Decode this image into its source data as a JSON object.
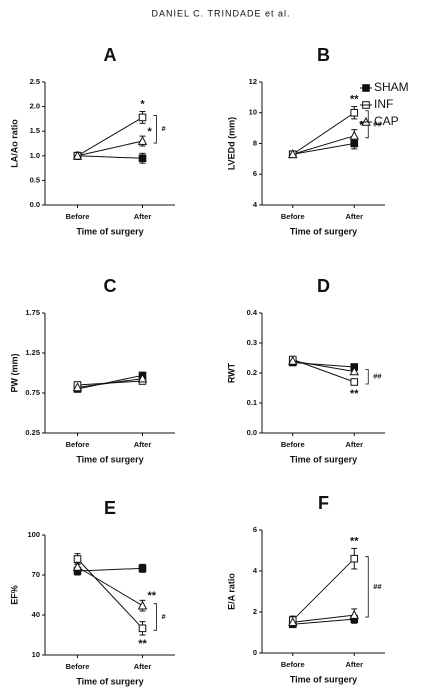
{
  "header": "DANIEL C. TRINDADE et al.",
  "chart_data": [
    {
      "type": "line",
      "title": "A",
      "ylabel": "LA/Ao ratio",
      "xlabel": "Time of surgery",
      "categories": [
        "Before",
        "After"
      ],
      "ylim": [
        0,
        2.5
      ],
      "yticks": [
        {
          "value": 0,
          "label": "0.0"
        },
        0.5,
        {
          "value": 1,
          "label": "1.0"
        },
        1.5,
        {
          "value": 2,
          "label": "2.0"
        },
        2.5
      ],
      "series": [
        {
          "color": "#111111",
          "marker": "square-filled",
          "values": [
            1.0,
            0.95
          ],
          "errors": [
            0.07,
            0.1
          ]
        },
        {
          "color": "#111111",
          "marker": "square-open",
          "values": [
            1.0,
            1.78
          ],
          "errors": [
            0.07,
            0.12
          ],
          "significance": [
            null,
            "*"
          ]
        },
        {
          "color": "#111111",
          "marker": "triangle-open",
          "values": [
            1.0,
            1.3
          ],
          "errors": [
            0.07,
            0.1
          ],
          "significance": [
            null,
            "*"
          ]
        }
      ],
      "bracket_label": "#"
    },
    {
      "type": "line",
      "title": "B",
      "ylabel": "LVEDd (mm)",
      "xlabel": "Time of surgery",
      "categories": [
        "Before",
        "After"
      ],
      "ylim": [
        4,
        12
      ],
      "yticks": [
        4,
        6,
        8,
        10,
        12
      ],
      "legend": "right",
      "series": [
        {
          "name": "SHAM",
          "color": "#111111",
          "marker": "square-filled",
          "values": [
            7.3,
            8.0
          ],
          "errors": [
            0.2,
            0.35
          ]
        },
        {
          "name": "INF",
          "color": "#111111",
          "marker": "square-open",
          "values": [
            7.3,
            10.0
          ],
          "errors": [
            0.2,
            0.4
          ],
          "significance": [
            null,
            "**"
          ]
        },
        {
          "name": "CAP",
          "color": "#111111",
          "marker": "triangle-open",
          "values": [
            7.3,
            8.5
          ],
          "errors": [
            0.2,
            0.4
          ],
          "significance": [
            null,
            "*"
          ]
        }
      ],
      "bracket_label": "##"
    },
    {
      "type": "line",
      "title": "C",
      "ylabel": "PW (mm)",
      "xlabel": "Time of surgery",
      "categories": [
        "Before",
        "After"
      ],
      "ylim": [
        0.25,
        1.75
      ],
      "yticks": [
        0.25,
        0.75,
        1.25,
        1.75
      ],
      "series": [
        {
          "color": "#111111",
          "marker": "square-filled",
          "values": [
            0.8,
            0.97
          ],
          "errors": [
            0.03,
            0.03
          ]
        },
        {
          "color": "#111111",
          "marker": "square-open",
          "values": [
            0.85,
            0.9
          ],
          "errors": [
            0.03,
            0.03
          ]
        },
        {
          "color": "#111111",
          "marker": "triangle-open",
          "values": [
            0.82,
            0.93
          ],
          "errors": [
            0.03,
            0.03
          ]
        }
      ]
    },
    {
      "type": "line",
      "title": "D",
      "ylabel": "RWT",
      "xlabel": "Time of surgery",
      "categories": [
        "Before",
        "After"
      ],
      "ylim": [
        0,
        0.4
      ],
      "yticks": [
        {
          "value": 0,
          "label": "0.0"
        },
        0.1,
        0.2,
        0.3,
        0.4
      ],
      "series": [
        {
          "color": "#111111",
          "marker": "square-filled",
          "values": [
            0.235,
            0.22
          ],
          "errors": [
            0.01,
            0.01
          ]
        },
        {
          "color": "#111111",
          "marker": "square-open",
          "values": [
            0.245,
            0.17
          ],
          "errors": [
            0.01,
            0.01
          ],
          "significance": [
            null,
            "**"
          ]
        },
        {
          "color": "#111111",
          "marker": "triangle-open",
          "values": [
            0.24,
            0.205
          ],
          "errors": [
            0.01,
            0.01
          ]
        }
      ],
      "bracket_label": "##"
    },
    {
      "type": "line",
      "title": "E",
      "ylabel": "EF%",
      "xlabel": "Time of surgery",
      "categories": [
        "Before",
        "After"
      ],
      "ylim": [
        10,
        100
      ],
      "yticks": [
        10,
        40,
        70,
        100
      ],
      "series": [
        {
          "color": "#111111",
          "marker": "square-filled",
          "values": [
            73,
            75
          ],
          "errors": [
            3,
            3
          ]
        },
        {
          "color": "#111111",
          "marker": "square-open",
          "values": [
            82,
            30
          ],
          "errors": [
            4,
            5
          ],
          "significance": [
            null,
            "**"
          ]
        },
        {
          "color": "#111111",
          "marker": "triangle-open",
          "values": [
            76,
            47
          ],
          "errors": [
            3,
            4
          ],
          "significance": [
            null,
            "**"
          ]
        }
      ],
      "bracket_label": "#"
    },
    {
      "type": "line",
      "title": "F",
      "ylabel": "E/A ratio",
      "xlabel": "Time of surgery",
      "categories": [
        "Before",
        "After"
      ],
      "ylim": [
        0,
        6
      ],
      "yticks": [
        0,
        2,
        4,
        6
      ],
      "series": [
        {
          "color": "#111111",
          "marker": "square-filled",
          "values": [
            1.4,
            1.65
          ],
          "errors": [
            0.15,
            0.2
          ]
        },
        {
          "color": "#111111",
          "marker": "square-open",
          "values": [
            1.6,
            4.6
          ],
          "errors": [
            0.2,
            0.5
          ],
          "significance": [
            null,
            "**"
          ]
        },
        {
          "color": "#111111",
          "marker": "triangle-open",
          "values": [
            1.5,
            1.85
          ],
          "errors": [
            0.15,
            0.3
          ]
        }
      ],
      "bracket_label": "##"
    }
  ]
}
